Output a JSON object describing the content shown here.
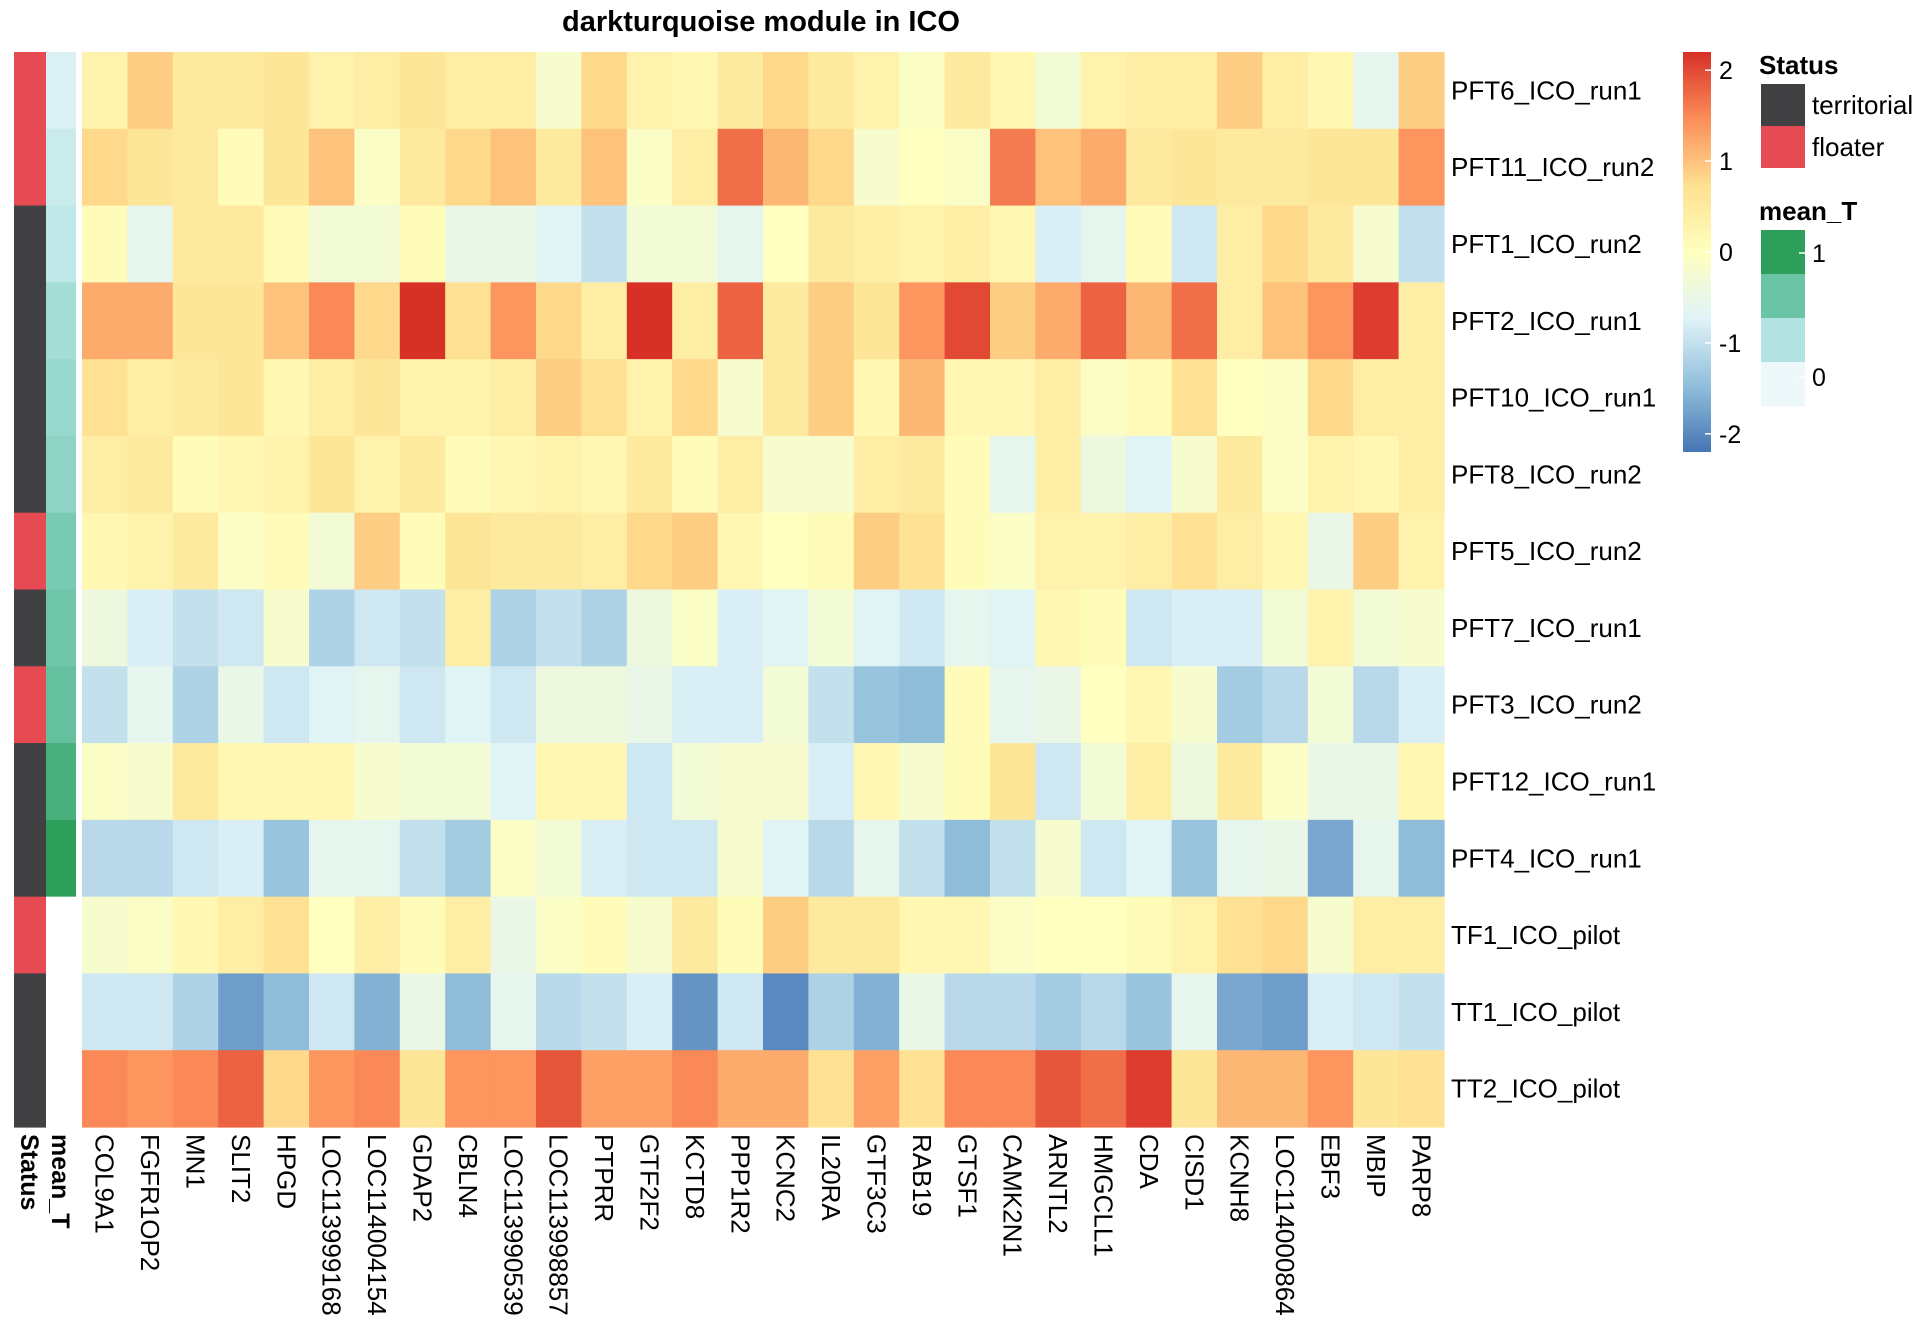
{
  "chart_data": {
    "type": "heatmap",
    "title": "darkturquoise module in ICO",
    "rows": [
      "PFT6_ICO_run1",
      "PFT11_ICO_run2",
      "PFT1_ICO_run2",
      "PFT2_ICO_run1",
      "PFT10_ICO_run1",
      "PFT8_ICO_run2",
      "PFT5_ICO_run2",
      "PFT7_ICO_run1",
      "PFT3_ICO_run2",
      "PFT12_ICO_run1",
      "PFT4_ICO_run1",
      "TF1_ICO_pilot",
      "TT1_ICO_pilot",
      "TT2_ICO_pilot"
    ],
    "columns": [
      "COL9A1",
      "FGFR1OP2",
      "MN1",
      "SLIT2",
      "HPGD",
      "LOC113999168",
      "LOC114004154",
      "GDAP2",
      "CBLN4",
      "LOC113990539",
      "LOC113998857",
      "PTPRR",
      "GTF2F2",
      "KCTD8",
      "PPP1R2",
      "KCNC2",
      "IL20RA",
      "GTF3C3",
      "RAB19",
      "GTSF1",
      "CAMK2N1",
      "ARNTL2",
      "HMGCLL1",
      "CDA",
      "CISD1",
      "KCNH8",
      "LOC114000864",
      "EBF3",
      "MBIP",
      "PARP8"
    ],
    "values": [
      [
        0.3,
        0.9,
        0.5,
        0.5,
        0.6,
        0.3,
        0.4,
        0.6,
        0.4,
        0.4,
        -0.2,
        0.8,
        0.3,
        0.2,
        0.5,
        0.8,
        0.5,
        0.3,
        -0.1,
        0.5,
        0.2,
        -0.3,
        0.3,
        0.4,
        0.4,
        0.9,
        0.4,
        0.2,
        -0.6,
        0.9
      ],
      [
        0.8,
        0.6,
        0.5,
        0.1,
        0.6,
        1.0,
        -0.1,
        0.5,
        0.8,
        1.0,
        0.5,
        1.0,
        -0.1,
        0.4,
        1.7,
        1.1,
        0.8,
        -0.2,
        0.0,
        -0.1,
        1.6,
        1.0,
        1.2,
        0.5,
        0.6,
        0.5,
        0.5,
        0.6,
        0.6,
        1.4
      ],
      [
        0.1,
        -0.6,
        0.5,
        0.5,
        0.1,
        -0.3,
        -0.3,
        0.1,
        -0.5,
        -0.5,
        -0.7,
        -1.0,
        -0.3,
        -0.3,
        -0.6,
        0.0,
        0.5,
        0.4,
        0.3,
        0.4,
        0.2,
        -0.8,
        -0.6,
        0.1,
        -0.9,
        0.4,
        0.8,
        0.5,
        -0.2,
        -1.0
      ],
      [
        1.2,
        1.2,
        0.6,
        0.6,
        1.0,
        1.5,
        0.8,
        2.2,
        0.7,
        1.4,
        0.8,
        0.4,
        2.2,
        0.4,
        1.8,
        0.5,
        0.9,
        0.6,
        1.4,
        2.0,
        0.9,
        1.2,
        1.8,
        1.1,
        1.7,
        0.4,
        1.0,
        1.4,
        2.1,
        0.4
      ],
      [
        0.7,
        0.4,
        0.5,
        0.6,
        0.2,
        0.4,
        0.6,
        0.3,
        0.3,
        0.4,
        0.9,
        0.7,
        0.3,
        0.8,
        -0.2,
        0.5,
        0.9,
        0.2,
        1.1,
        0.2,
        0.2,
        0.4,
        -0.1,
        0.1,
        0.7,
        0.0,
        -0.1,
        0.8,
        0.4,
        0.4
      ],
      [
        0.4,
        0.5,
        0.1,
        0.2,
        0.3,
        0.6,
        0.3,
        0.5,
        0.1,
        0.2,
        0.3,
        0.2,
        0.5,
        0.1,
        0.4,
        -0.2,
        -0.2,
        0.4,
        0.5,
        0.1,
        -0.6,
        0.4,
        -0.4,
        -0.7,
        -0.2,
        0.5,
        -0.1,
        0.3,
        0.2,
        0.4
      ],
      [
        0.2,
        0.3,
        0.5,
        -0.1,
        0.1,
        -0.3,
        0.9,
        0.1,
        0.6,
        0.5,
        0.5,
        0.4,
        0.8,
        0.9,
        0.2,
        0.0,
        0.1,
        0.9,
        0.7,
        0.1,
        -0.1,
        0.3,
        0.3,
        0.4,
        0.7,
        0.4,
        0.2,
        -0.5,
        0.9,
        0.3
      ],
      [
        -0.4,
        -0.8,
        -1.0,
        -0.9,
        -0.2,
        -1.2,
        -0.9,
        -1.0,
        0.4,
        -1.2,
        -1.0,
        -1.2,
        -0.4,
        -0.1,
        -0.8,
        -0.7,
        -0.3,
        -0.7,
        -0.9,
        -0.6,
        -0.7,
        0.2,
        0.1,
        -0.9,
        -0.8,
        -0.8,
        -0.3,
        0.3,
        -0.3,
        -0.2
      ],
      [
        -1.0,
        -0.6,
        -1.2,
        -0.5,
        -0.9,
        -0.7,
        -0.6,
        -0.9,
        -0.7,
        -0.9,
        -0.4,
        -0.4,
        -0.5,
        -0.8,
        -0.8,
        -0.3,
        -1.0,
        -1.4,
        -1.5,
        0.1,
        -0.6,
        -0.5,
        0.0,
        0.2,
        -0.2,
        -1.3,
        -1.1,
        -0.3,
        -1.1,
        -0.8
      ],
      [
        -0.1,
        -0.2,
        0.5,
        0.2,
        0.2,
        0.2,
        -0.2,
        -0.3,
        -0.3,
        -0.7,
        0.2,
        0.2,
        -0.9,
        -0.3,
        -0.2,
        -0.2,
        -0.8,
        0.2,
        -0.2,
        0.1,
        0.6,
        -0.9,
        -0.3,
        0.4,
        -0.4,
        0.5,
        -0.1,
        -0.5,
        -0.5,
        0.2
      ],
      [
        -1.1,
        -1.1,
        -0.9,
        -0.8,
        -1.4,
        -0.6,
        -0.6,
        -1.0,
        -1.3,
        -0.1,
        -0.3,
        -0.8,
        -0.9,
        -0.9,
        -0.2,
        -0.7,
        -1.1,
        -0.6,
        -1.0,
        -1.5,
        -1.0,
        -0.2,
        -0.9,
        -0.7,
        -1.4,
        -0.6,
        -0.5,
        -1.7,
        -0.6,
        -1.5
      ],
      [
        -0.2,
        -0.1,
        0.2,
        0.4,
        0.7,
        0.0,
        0.4,
        0.1,
        0.4,
        -0.5,
        -0.1,
        0.1,
        -0.2,
        0.5,
        0.1,
        0.9,
        0.5,
        0.5,
        0.2,
        0.2,
        -0.1,
        0.0,
        0.0,
        0.1,
        0.3,
        0.7,
        0.8,
        -0.2,
        0.4,
        0.4
      ],
      [
        -0.9,
        -0.9,
        -1.2,
        -1.8,
        -1.5,
        -0.9,
        -1.6,
        -0.5,
        -1.5,
        -0.6,
        -1.1,
        -1.0,
        -0.8,
        -1.9,
        -0.9,
        -2.0,
        -1.2,
        -1.6,
        -0.5,
        -1.1,
        -1.1,
        -1.3,
        -1.1,
        -1.4,
        -0.6,
        -1.7,
        -1.8,
        -0.8,
        -0.9,
        -1.0
      ],
      [
        1.5,
        1.4,
        1.5,
        1.8,
        0.8,
        1.4,
        1.5,
        0.6,
        1.4,
        1.4,
        1.9,
        1.3,
        1.3,
        1.5,
        1.2,
        1.2,
        0.7,
        1.3,
        0.7,
        1.5,
        1.5,
        1.9,
        1.7,
        2.1,
        0.6,
        1.1,
        1.1,
        1.4,
        0.6,
        0.7
      ]
    ],
    "annotations": {
      "Status": [
        "floater",
        "floater",
        "territorial",
        "territorial",
        "territorial",
        "territorial",
        "floater",
        "territorial",
        "floater",
        "territorial",
        "territorial",
        "floater",
        "territorial",
        "territorial"
      ],
      "mean_T": [
        0.1,
        0.2,
        0.25,
        0.4,
        0.45,
        0.5,
        0.6,
        0.65,
        0.7,
        0.85,
        1.0,
        null,
        null,
        null
      ]
    },
    "annotation_labels": [
      "Status",
      "mean_T"
    ],
    "color_scale": {
      "type": "diverging",
      "min": -2.2,
      "max": 2.2,
      "ticks": [
        "2",
        "1",
        "0",
        "-1",
        "-2"
      ],
      "colors": [
        "#4575b4",
        "#91bfdb",
        "#e0f3f8",
        "#ffffbf",
        "#fee090",
        "#fc8d59",
        "#d73027"
      ]
    },
    "legend": {
      "status_title": "Status",
      "status_entries": [
        {
          "label": "territorial",
          "color": "#414143"
        },
        {
          "label": "floater",
          "color": "#e64a52"
        }
      ],
      "mean_t_title": "mean_T",
      "mean_t_ticks": [
        "1",
        "0"
      ],
      "mean_t_colors": [
        "#2e9e5b",
        "#6bc4a6",
        "#b2e2e2",
        "#edf8fb"
      ]
    }
  }
}
